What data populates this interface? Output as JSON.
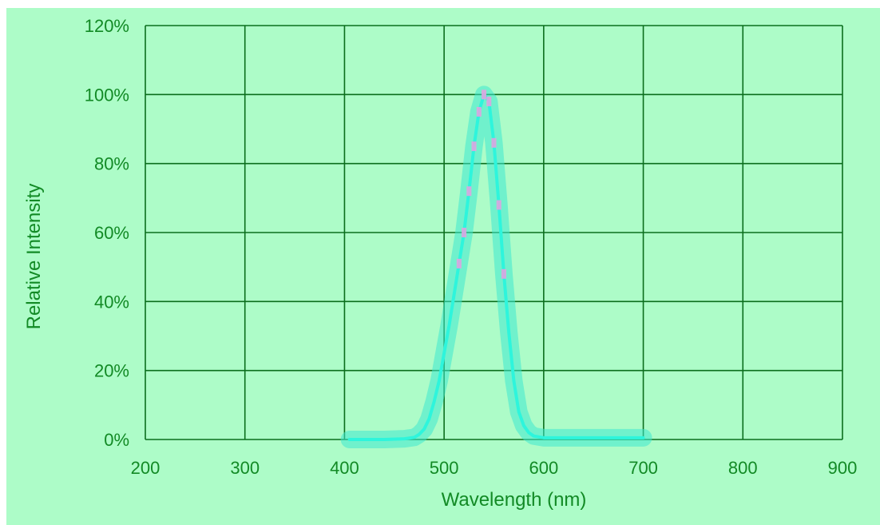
{
  "colors": {
    "background": "#adfcc8",
    "grid": "#0b6e1d",
    "text": "#128a25",
    "curve": "#2ef5dc",
    "band": "#3ee8cf",
    "marker": "#e8a0e0"
  },
  "chart_data": {
    "type": "line",
    "title": "",
    "xlabel": "Wavelength (nm)",
    "ylabel": "Relative Intensity",
    "xlim": [
      200,
      900
    ],
    "ylim": [
      0,
      120
    ],
    "x_ticks": [
      200,
      300,
      400,
      500,
      600,
      700,
      800,
      900
    ],
    "x_tick_labels": [
      "200",
      "300",
      "400",
      "500",
      "600",
      "700",
      "800",
      "900"
    ],
    "y_ticks": [
      0,
      20,
      40,
      60,
      80,
      100,
      120
    ],
    "y_tick_labels": [
      "0%",
      "20%",
      "40%",
      "60%",
      "80%",
      "100%",
      "120%"
    ],
    "grid": true,
    "legend": "none",
    "series": [
      {
        "x": [
          405,
          440,
          460,
          470,
          475,
          480,
          485,
          490,
          495,
          500,
          505,
          510,
          515,
          520,
          525,
          530,
          535,
          540,
          545,
          550,
          555,
          560,
          565,
          570,
          575,
          580,
          585,
          590,
          600,
          650,
          700
        ],
        "y": [
          0,
          0,
          0.2,
          0.6,
          1.5,
          3,
          6,
          11,
          17,
          25,
          33,
          42,
          51,
          60,
          72,
          85,
          95,
          100,
          98,
          86,
          68,
          48,
          31,
          17,
          8,
          4,
          2,
          1,
          0.5,
          0.5,
          0.5
        ]
      }
    ]
  }
}
